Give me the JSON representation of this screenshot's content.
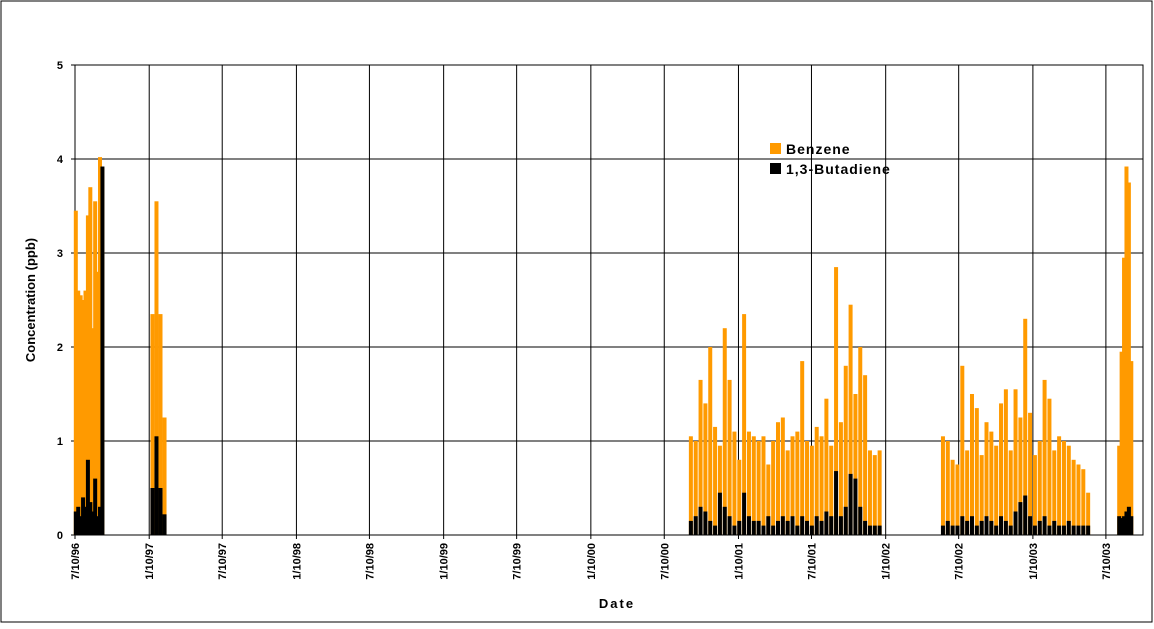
{
  "chart_data": {
    "type": "bar",
    "x_label": "Date",
    "y_label": "Concentration (ppb)",
    "x": [
      "1996-07-12",
      "1996-07-18",
      "1996-07-24",
      "1996-07-30",
      "1996-08-05",
      "1996-08-11",
      "1996-08-17",
      "1996-08-23",
      "1996-08-29",
      "1996-09-04",
      "1996-09-10",
      "1996-09-16",
      "1997-01-18",
      "1997-01-28",
      "1997-02-07",
      "1997-02-17",
      "2000-09-14",
      "2000-09-26",
      "2000-10-08",
      "2000-10-20",
      "2000-11-01",
      "2000-11-13",
      "2000-11-25",
      "2000-12-07",
      "2000-12-19",
      "2000-12-31",
      "2001-01-12",
      "2001-01-24",
      "2001-02-05",
      "2001-02-17",
      "2001-03-01",
      "2001-03-13",
      "2001-03-25",
      "2001-04-06",
      "2001-04-18",
      "2001-04-30",
      "2001-05-12",
      "2001-05-24",
      "2001-06-05",
      "2001-06-17",
      "2001-06-29",
      "2001-07-11",
      "2001-07-23",
      "2001-08-04",
      "2001-08-16",
      "2001-08-28",
      "2001-09-09",
      "2001-09-21",
      "2001-10-03",
      "2001-10-15",
      "2001-10-27",
      "2001-11-08",
      "2001-11-20",
      "2001-12-02",
      "2001-12-14",
      "2001-12-26",
      "2002-06-01",
      "2002-06-13",
      "2002-06-25",
      "2002-07-07",
      "2002-07-19",
      "2002-07-31",
      "2002-08-12",
      "2002-08-24",
      "2002-09-05",
      "2002-09-17",
      "2002-09-29",
      "2002-10-11",
      "2002-10-23",
      "2002-11-04",
      "2002-11-16",
      "2002-11-28",
      "2002-12-10",
      "2002-12-22",
      "2003-01-03",
      "2003-01-15",
      "2003-01-27",
      "2003-02-08",
      "2003-02-20",
      "2003-03-04",
      "2003-03-16",
      "2003-03-28",
      "2003-04-09",
      "2003-04-21",
      "2003-05-03",
      "2003-05-15",
      "2003-05-27",
      "2003-08-12",
      "2003-08-18",
      "2003-08-24",
      "2003-08-30",
      "2003-09-05",
      "2003-09-11"
    ],
    "series": [
      {
        "name": "Benzene",
        "color": "#ff9a00",
        "values": [
          3.45,
          2.6,
          2.55,
          2.5,
          2.6,
          3.4,
          3.7,
          2.2,
          3.55,
          2.8,
          4.02,
          3.9,
          2.35,
          3.55,
          2.35,
          1.25,
          1.05,
          1.0,
          1.65,
          1.4,
          2.0,
          1.15,
          0.95,
          2.2,
          1.65,
          1.1,
          0.8,
          2.35,
          1.1,
          1.05,
          1.0,
          1.05,
          0.75,
          1.0,
          1.2,
          1.25,
          0.9,
          1.05,
          1.1,
          1.85,
          1.0,
          0.95,
          1.15,
          1.05,
          1.45,
          0.95,
          2.85,
          1.2,
          1.8,
          2.45,
          1.5,
          2.0,
          1.7,
          0.9,
          0.85,
          0.9,
          1.05,
          1.0,
          0.8,
          0.75,
          1.8,
          0.9,
          1.5,
          1.35,
          0.85,
          1.2,
          1.1,
          0.95,
          1.4,
          1.55,
          0.9,
          1.55,
          1.25,
          2.3,
          1.3,
          0.85,
          1.0,
          1.65,
          1.45,
          0.9,
          1.05,
          1.0,
          0.95,
          0.8,
          0.75,
          0.7,
          0.45,
          0.95,
          1.95,
          2.95,
          3.92,
          3.75,
          1.85
        ]
      },
      {
        "name": "1,3-Butadiene",
        "color": "#000000",
        "values": [
          0.25,
          0.3,
          0.2,
          0.4,
          0.3,
          0.8,
          0.35,
          0.25,
          0.6,
          0.2,
          0.3,
          3.92,
          0.5,
          1.05,
          0.5,
          0.22,
          0.15,
          0.2,
          0.3,
          0.25,
          0.15,
          0.1,
          0.45,
          0.3,
          0.2,
          0.1,
          0.15,
          0.45,
          0.2,
          0.15,
          0.15,
          0.1,
          0.2,
          0.1,
          0.15,
          0.2,
          0.15,
          0.2,
          0.1,
          0.2,
          0.15,
          0.1,
          0.2,
          0.15,
          0.25,
          0.2,
          0.68,
          0.2,
          0.3,
          0.65,
          0.6,
          0.3,
          0.15,
          0.1,
          0.1,
          0.1,
          0.1,
          0.15,
          0.1,
          0.1,
          0.2,
          0.15,
          0.2,
          0.1,
          0.15,
          0.2,
          0.15,
          0.1,
          0.2,
          0.15,
          0.1,
          0.25,
          0.35,
          0.42,
          0.2,
          0.1,
          0.15,
          0.2,
          0.1,
          0.15,
          0.1,
          0.1,
          0.15,
          0.1,
          0.1,
          0.1,
          0.1,
          0.2,
          0.18,
          0.2,
          0.25,
          0.3,
          0.2
        ]
      }
    ],
    "xlim": [
      "1996-07-10",
      "2003-10-10"
    ],
    "xticks": [
      {
        "value": "1996-07-10",
        "label": "7/10/96"
      },
      {
        "value": "1997-01-10",
        "label": "1/10/97"
      },
      {
        "value": "1997-07-10",
        "label": "7/10/97"
      },
      {
        "value": "1998-01-10",
        "label": "1/10/98"
      },
      {
        "value": "1998-07-10",
        "label": "7/10/98"
      },
      {
        "value": "1999-01-10",
        "label": "1/10/99"
      },
      {
        "value": "1999-07-10",
        "label": "7/10/99"
      },
      {
        "value": "2000-01-10",
        "label": "1/10/00"
      },
      {
        "value": "2000-07-10",
        "label": "7/10/00"
      },
      {
        "value": "2001-01-10",
        "label": "1/10/01"
      },
      {
        "value": "2001-07-10",
        "label": "7/10/01"
      },
      {
        "value": "2002-01-10",
        "label": "1/10/02"
      },
      {
        "value": "2002-07-10",
        "label": "7/10/02"
      },
      {
        "value": "2003-01-10",
        "label": "1/10/03"
      },
      {
        "value": "2003-07-10",
        "label": "7/10/03"
      }
    ],
    "ylim": [
      0,
      5
    ],
    "yticks": [
      0,
      1,
      2,
      3,
      4,
      5
    ],
    "grid": true
  }
}
